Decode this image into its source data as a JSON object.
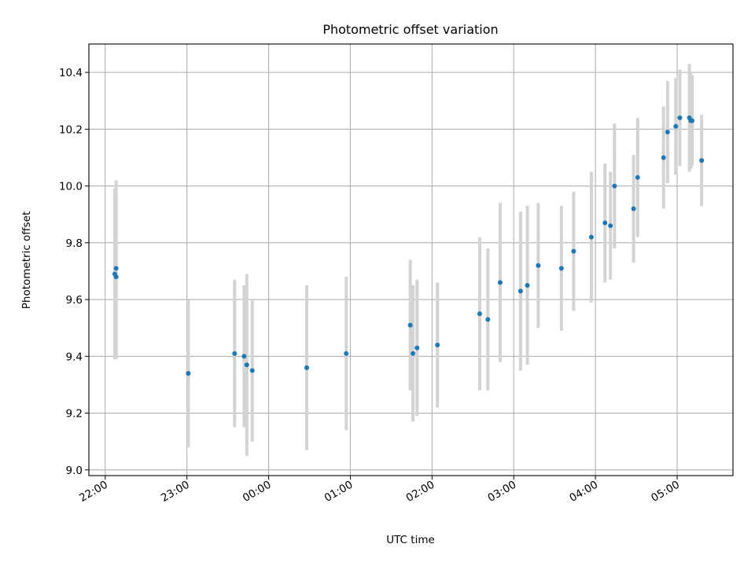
{
  "chart_data": {
    "type": "scatter",
    "title": "Photometric offset variation",
    "xlabel": "UTC time",
    "ylabel": "Photometric offset",
    "grid": true,
    "x_is_time": true,
    "xlim": [
      "21:48",
      "05:41"
    ],
    "ylim": [
      8.98,
      10.5
    ],
    "xticks": [
      "22:00",
      "23:00",
      "00:00",
      "01:00",
      "02:00",
      "03:00",
      "04:00",
      "05:00"
    ],
    "yticks": [
      "9.0",
      "9.2",
      "9.4",
      "9.6",
      "9.8",
      "10.0",
      "10.2",
      "10.4"
    ],
    "colors": {
      "point": "#1f77b4",
      "errorbar": "#d3d3d3"
    },
    "points": [
      {
        "t": "22:07",
        "y": 9.69,
        "err": 0.3
      },
      {
        "t": "22:08",
        "y": 9.71,
        "err": 0.31
      },
      {
        "t": "22:08",
        "y": 9.68,
        "err": 0.29
      },
      {
        "t": "23:01",
        "y": 9.34,
        "err": 0.26
      },
      {
        "t": "23:35",
        "y": 9.41,
        "err": 0.26
      },
      {
        "t": "23:42",
        "y": 9.4,
        "err": 0.25
      },
      {
        "t": "23:44",
        "y": 9.37,
        "err": 0.32
      },
      {
        "t": "23:48",
        "y": 9.35,
        "err": 0.25
      },
      {
        "t": "00:28",
        "y": 9.36,
        "err": 0.29
      },
      {
        "t": "00:57",
        "y": 9.41,
        "err": 0.27
      },
      {
        "t": "01:44",
        "y": 9.51,
        "err": 0.23
      },
      {
        "t": "01:46",
        "y": 9.41,
        "err": 0.24
      },
      {
        "t": "01:49",
        "y": 9.43,
        "err": 0.24
      },
      {
        "t": "02:04",
        "y": 9.44,
        "err": 0.22
      },
      {
        "t": "02:35",
        "y": 9.55,
        "err": 0.27
      },
      {
        "t": "02:41",
        "y": 9.53,
        "err": 0.25
      },
      {
        "t": "02:50",
        "y": 9.66,
        "err": 0.28
      },
      {
        "t": "03:05",
        "y": 9.63,
        "err": 0.28
      },
      {
        "t": "03:10",
        "y": 9.65,
        "err": 0.28
      },
      {
        "t": "03:18",
        "y": 9.72,
        "err": 0.22
      },
      {
        "t": "03:35",
        "y": 9.71,
        "err": 0.22
      },
      {
        "t": "03:44",
        "y": 9.77,
        "err": 0.21
      },
      {
        "t": "03:57",
        "y": 9.82,
        "err": 0.23
      },
      {
        "t": "04:07",
        "y": 9.87,
        "err": 0.21
      },
      {
        "t": "04:11",
        "y": 9.86,
        "err": 0.19
      },
      {
        "t": "04:14",
        "y": 10.0,
        "err": 0.22
      },
      {
        "t": "04:28",
        "y": 9.92,
        "err": 0.19
      },
      {
        "t": "04:31",
        "y": 10.03,
        "err": 0.21
      },
      {
        "t": "04:50",
        "y": 10.1,
        "err": 0.18
      },
      {
        "t": "04:53",
        "y": 10.19,
        "err": 0.18
      },
      {
        "t": "04:59",
        "y": 10.21,
        "err": 0.17
      },
      {
        "t": "05:02",
        "y": 10.24,
        "err": 0.17
      },
      {
        "t": "05:09",
        "y": 10.24,
        "err": 0.19
      },
      {
        "t": "05:10",
        "y": 10.23,
        "err": 0.17
      },
      {
        "t": "05:11",
        "y": 10.23,
        "err": 0.16
      },
      {
        "t": "05:18",
        "y": 10.09,
        "err": 0.16
      }
    ]
  }
}
